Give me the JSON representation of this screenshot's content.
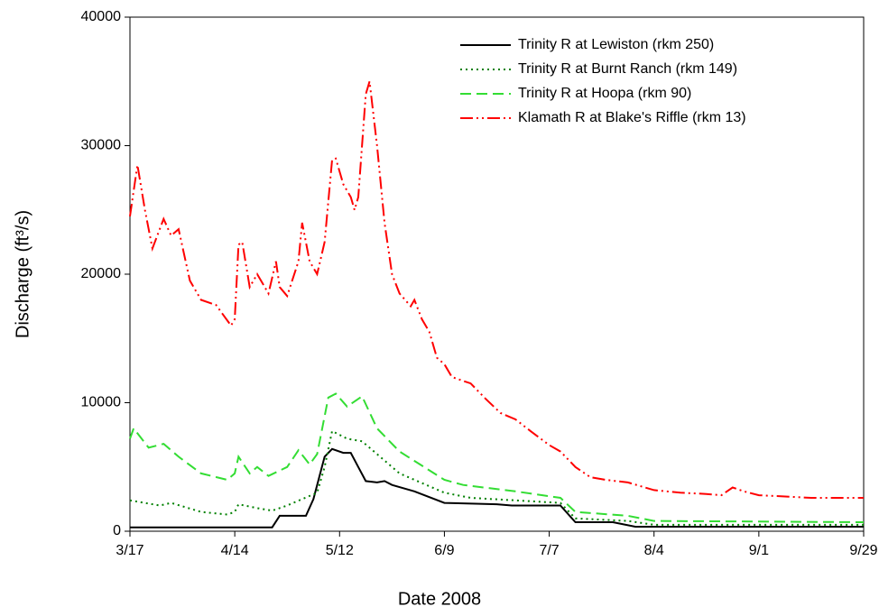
{
  "chart_data": {
    "type": "line",
    "xlabel": "Date 2008",
    "ylabel": "Discharge (ft³/s)",
    "xlim": [
      "3/17",
      "9/29"
    ],
    "xticks": [
      "3/17",
      "4/14",
      "5/12",
      "6/9",
      "7/7",
      "8/4",
      "9/1",
      "9/29"
    ],
    "ylim": [
      0,
      40000
    ],
    "yticks": [
      0,
      10000,
      20000,
      30000,
      40000
    ],
    "legend": "top-right",
    "series": [
      {
        "name": "Trinity R at Lewiston (rkm 250)",
        "color": "#000000",
        "dash": "solid",
        "x": [
          "3/17",
          "4/24",
          "4/26",
          "5/3",
          "5/5",
          "5/8",
          "5/10",
          "5/13",
          "5/15",
          "5/17",
          "5/19",
          "5/22",
          "5/24",
          "5/26",
          "6/1",
          "6/9",
          "6/23",
          "6/27",
          "7/10",
          "7/14",
          "7/24",
          "7/30",
          "9/29"
        ],
        "values": [
          300,
          300,
          1200,
          1200,
          2500,
          5800,
          6400,
          6100,
          6100,
          5000,
          3900,
          3800,
          3900,
          3600,
          3100,
          2200,
          2100,
          2000,
          2000,
          700,
          700,
          350,
          350
        ]
      },
      {
        "name": "Trinity R at Burnt Ranch (rkm 149)",
        "color": "#008000",
        "dash": "dotted",
        "x": [
          "3/17",
          "3/25",
          "3/28",
          "4/5",
          "4/12",
          "4/14",
          "4/15",
          "4/20",
          "4/24",
          "4/28",
          "5/2",
          "5/6",
          "5/8",
          "5/10",
          "5/14",
          "5/18",
          "5/22",
          "5/28",
          "6/9",
          "6/16",
          "7/10",
          "7/14",
          "7/28",
          "8/4",
          "9/29"
        ],
        "values": [
          2400,
          2000,
          2200,
          1500,
          1300,
          1500,
          2100,
          1800,
          1600,
          2000,
          2500,
          3000,
          5000,
          7800,
          7200,
          7000,
          6000,
          4500,
          3000,
          2600,
          2200,
          1000,
          800,
          500,
          500
        ]
      },
      {
        "name": "Trinity R at Hoopa (rkm 90)",
        "color": "#33dd33",
        "dash": "dashed",
        "x": [
          "3/17",
          "3/18",
          "3/22",
          "3/26",
          "3/30",
          "4/5",
          "4/12",
          "4/14",
          "4/15",
          "4/18",
          "4/20",
          "4/23",
          "4/28",
          "5/1",
          "5/4",
          "5/6",
          "5/9",
          "5/11",
          "5/14",
          "5/18",
          "5/22",
          "5/28",
          "6/9",
          "6/14",
          "6/28",
          "7/10",
          "7/14",
          "7/28",
          "8/4",
          "9/29"
        ],
        "values": [
          7200,
          8000,
          6500,
          6800,
          5800,
          4500,
          4000,
          4500,
          5800,
          4500,
          5000,
          4300,
          5000,
          6300,
          5200,
          6000,
          10400,
          10700,
          9700,
          10500,
          8000,
          6200,
          4000,
          3600,
          3100,
          2600,
          1500,
          1200,
          800,
          700
        ]
      },
      {
        "name": "Klamath R at Blake's Riffle (rkm 13)",
        "color": "#ff0000",
        "dash": "dash-dot-dot",
        "x": [
          "3/17",
          "3/19",
          "3/21",
          "3/23",
          "3/26",
          "3/28",
          "3/30",
          "4/2",
          "4/5",
          "4/9",
          "4/13",
          "4/14",
          "4/15",
          "4/16",
          "4/18",
          "4/20",
          "4/23",
          "4/25",
          "4/26",
          "4/28",
          "5/1",
          "5/2",
          "5/4",
          "5/6",
          "5/8",
          "5/10",
          "5/11",
          "5/13",
          "5/15",
          "5/16",
          "5/17",
          "5/19",
          "5/20",
          "5/22",
          "5/24",
          "5/26",
          "5/28",
          "5/31",
          "6/1",
          "6/3",
          "6/5",
          "6/7",
          "6/9",
          "6/11",
          "6/14",
          "6/16",
          "6/20",
          "6/24",
          "6/28",
          "7/2",
          "7/7",
          "7/10",
          "7/14",
          "7/18",
          "7/22",
          "7/28",
          "8/4",
          "8/11",
          "8/18",
          "8/22",
          "8/25",
          "8/28",
          "9/1",
          "9/8",
          "9/15",
          "9/22",
          "9/29"
        ],
        "values": [
          24500,
          28500,
          25000,
          22000,
          24300,
          23000,
          23500,
          19500,
          18000,
          17600,
          16000,
          16500,
          22300,
          22500,
          19000,
          20000,
          18500,
          21000,
          19000,
          18300,
          21000,
          24000,
          21000,
          20000,
          22500,
          28900,
          29000,
          27000,
          26000,
          25000,
          26000,
          34000,
          35000,
          30000,
          24000,
          20000,
          18500,
          17500,
          18000,
          16500,
          15500,
          13500,
          13000,
          12000,
          11700,
          11500,
          10300,
          9200,
          8700,
          7800,
          6700,
          6200,
          5000,
          4200,
          4000,
          3800,
          3200,
          3000,
          2900,
          2800,
          3400,
          3100,
          2800,
          2700,
          2600,
          2600,
          2600
        ]
      }
    ]
  }
}
